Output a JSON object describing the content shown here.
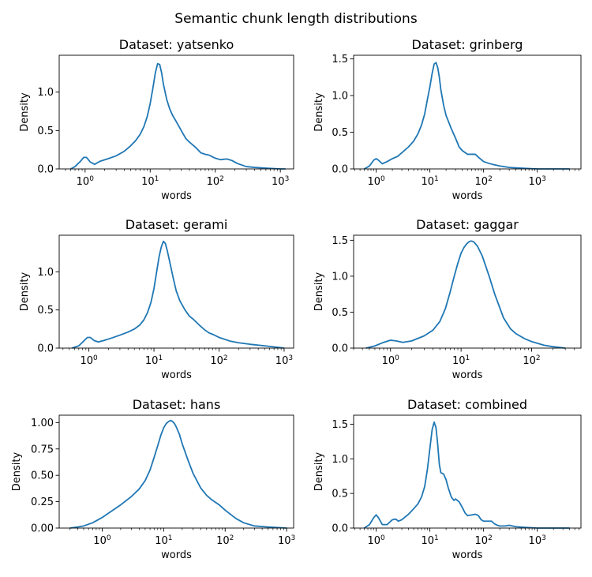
{
  "suptitle": "Semantic chunk length distributions",
  "colors": {
    "line": "#1f77b4",
    "axis": "#000000",
    "background": "#ffffff"
  },
  "chart_data": [
    {
      "type": "line",
      "title": "Dataset: yatsenko",
      "xlabel": "words",
      "ylabel": "Density",
      "xscale": "log",
      "xlim": [
        0.4,
        1600
      ],
      "ylim": [
        0,
        1.48
      ],
      "xticks": [
        {
          "value": 1,
          "label": "10^0"
        },
        {
          "value": 10,
          "label": "10^1"
        },
        {
          "value": 100,
          "label": "10^2"
        },
        {
          "value": 1000,
          "label": "10^3"
        }
      ],
      "yticks": [
        {
          "value": 0,
          "label": "0.0"
        },
        {
          "value": 0.5,
          "label": "0.5"
        },
        {
          "value": 1.0,
          "label": "1.0"
        }
      ],
      "series": [
        {
          "x": [
            0.6,
            0.7,
            0.85,
            0.95,
            1.05,
            1.2,
            1.4,
            1.7,
            2.2,
            3,
            4,
            5,
            6,
            7,
            8,
            9,
            10,
            11,
            12,
            13,
            14,
            15,
            16,
            18,
            20,
            22,
            25,
            30,
            35,
            40,
            50,
            60,
            70,
            80,
            100,
            120,
            150,
            180,
            220,
            300,
            400,
            600,
            1000,
            1200
          ],
          "y": [
            0.0,
            0.03,
            0.1,
            0.15,
            0.15,
            0.09,
            0.06,
            0.1,
            0.13,
            0.17,
            0.23,
            0.3,
            0.37,
            0.45,
            0.55,
            0.68,
            0.85,
            1.05,
            1.25,
            1.37,
            1.36,
            1.25,
            1.1,
            0.9,
            0.78,
            0.7,
            0.62,
            0.5,
            0.4,
            0.35,
            0.28,
            0.21,
            0.19,
            0.18,
            0.14,
            0.12,
            0.13,
            0.11,
            0.07,
            0.03,
            0.02,
            0.01,
            0.0,
            0.0
          ]
        }
      ]
    },
    {
      "type": "line",
      "title": "Dataset: grinberg",
      "xlabel": "words",
      "ylabel": "Density",
      "xscale": "log",
      "xlim": [
        0.38,
        6500
      ],
      "ylim": [
        0,
        1.55
      ],
      "xticks": [
        {
          "value": 1,
          "label": "10^0"
        },
        {
          "value": 10,
          "label": "10^1"
        },
        {
          "value": 100,
          "label": "10^2"
        },
        {
          "value": 1000,
          "label": "10^3"
        }
      ],
      "yticks": [
        {
          "value": 0,
          "label": "0.0"
        },
        {
          "value": 0.5,
          "label": "0.5"
        },
        {
          "value": 1.0,
          "label": "1.0"
        },
        {
          "value": 1.5,
          "label": "1.5"
        }
      ],
      "series": [
        {
          "x": [
            0.6,
            0.75,
            0.9,
            1.0,
            1.1,
            1.3,
            1.6,
            2.0,
            2.5,
            3,
            4,
            5,
            6,
            7,
            8,
            9,
            10,
            11,
            12,
            13,
            14,
            15,
            16,
            18,
            20,
            25,
            30,
            35,
            40,
            50,
            60,
            70,
            80,
            100,
            120,
            150,
            200,
            300,
            500,
            1000,
            2000,
            4000
          ],
          "y": [
            0.0,
            0.04,
            0.12,
            0.14,
            0.12,
            0.07,
            0.1,
            0.14,
            0.17,
            0.22,
            0.3,
            0.38,
            0.48,
            0.6,
            0.75,
            0.95,
            1.12,
            1.3,
            1.43,
            1.45,
            1.38,
            1.25,
            1.08,
            0.87,
            0.73,
            0.55,
            0.42,
            0.3,
            0.25,
            0.2,
            0.2,
            0.2,
            0.16,
            0.1,
            0.08,
            0.06,
            0.04,
            0.02,
            0.01,
            0.0,
            0.0,
            0.0
          ]
        }
      ]
    },
    {
      "type": "line",
      "title": "Dataset: gerami",
      "xlabel": "words",
      "ylabel": "Density",
      "xscale": "log",
      "xlim": [
        0.35,
        1400
      ],
      "ylim": [
        0,
        1.48
      ],
      "xticks": [
        {
          "value": 1,
          "label": "10^0"
        },
        {
          "value": 10,
          "label": "10^1"
        },
        {
          "value": 100,
          "label": "10^2"
        },
        {
          "value": 1000,
          "label": "10^3"
        }
      ],
      "yticks": [
        {
          "value": 0,
          "label": "0.0"
        },
        {
          "value": 0.5,
          "label": "0.5"
        },
        {
          "value": 1.0,
          "label": "1.0"
        }
      ],
      "series": [
        {
          "x": [
            0.55,
            0.7,
            0.85,
            0.95,
            1.05,
            1.2,
            1.4,
            1.7,
            2.2,
            3,
            4,
            5,
            6,
            7,
            8,
            9,
            10,
            11,
            12,
            13,
            14,
            15,
            16,
            18,
            20,
            22,
            25,
            30,
            35,
            40,
            50,
            60,
            70,
            80,
            100,
            150,
            200,
            300,
            500,
            800,
            1000
          ],
          "y": [
            0.0,
            0.03,
            0.1,
            0.14,
            0.14,
            0.1,
            0.08,
            0.1,
            0.13,
            0.17,
            0.21,
            0.25,
            0.3,
            0.37,
            0.47,
            0.6,
            0.78,
            1.0,
            1.2,
            1.33,
            1.4,
            1.37,
            1.28,
            1.08,
            0.9,
            0.75,
            0.62,
            0.5,
            0.42,
            0.38,
            0.3,
            0.24,
            0.2,
            0.18,
            0.14,
            0.09,
            0.07,
            0.05,
            0.03,
            0.01,
            0.0
          ]
        }
      ]
    },
    {
      "type": "line",
      "title": "Dataset: gaggar",
      "xlabel": "words",
      "ylabel": "Density",
      "xscale": "log",
      "xlim": [
        0.3,
        500
      ],
      "ylim": [
        0,
        1.57
      ],
      "xticks": [
        {
          "value": 1,
          "label": "10^0"
        },
        {
          "value": 10,
          "label": "10^1"
        },
        {
          "value": 100,
          "label": "10^2"
        }
      ],
      "yticks": [
        {
          "value": 0,
          "label": "0.0"
        },
        {
          "value": 0.5,
          "label": "0.5"
        },
        {
          "value": 1.0,
          "label": "1.0"
        },
        {
          "value": 1.5,
          "label": "1.5"
        }
      ],
      "series": [
        {
          "x": [
            0.45,
            0.6,
            0.8,
            1.0,
            1.2,
            1.5,
            2,
            3,
            4,
            5,
            6,
            7,
            8,
            9,
            10,
            11,
            12,
            13,
            14,
            15,
            17,
            20,
            25,
            30,
            40,
            50,
            60,
            80,
            100,
            150,
            200,
            300
          ],
          "y": [
            0.0,
            0.03,
            0.08,
            0.11,
            0.1,
            0.08,
            0.1,
            0.17,
            0.25,
            0.37,
            0.55,
            0.78,
            1.0,
            1.18,
            1.32,
            1.4,
            1.45,
            1.48,
            1.49,
            1.48,
            1.42,
            1.28,
            1.0,
            0.75,
            0.42,
            0.27,
            0.2,
            0.13,
            0.09,
            0.04,
            0.02,
            0.0
          ]
        }
      ]
    },
    {
      "type": "line",
      "title": "Dataset: hans",
      "xlabel": "words",
      "ylabel": "Density",
      "xscale": "log",
      "xlim": [
        0.2,
        1300
      ],
      "ylim": [
        0,
        1.07
      ],
      "xticks": [
        {
          "value": 1,
          "label": "10^0"
        },
        {
          "value": 10,
          "label": "10^1"
        },
        {
          "value": 100,
          "label": "10^2"
        },
        {
          "value": 1000,
          "label": "10^3"
        }
      ],
      "yticks": [
        {
          "value": 0,
          "label": "0.00"
        },
        {
          "value": 0.25,
          "label": "0.25"
        },
        {
          "value": 0.5,
          "label": "0.50"
        },
        {
          "value": 0.75,
          "label": "0.75"
        },
        {
          "value": 1.0,
          "label": "1.00"
        }
      ],
      "series": [
        {
          "x": [
            0.3,
            0.4,
            0.5,
            0.7,
            1.0,
            1.5,
            2,
            3,
            4,
            5,
            6,
            7,
            8,
            9,
            10,
            11,
            12,
            13,
            14,
            15,
            16,
            18,
            20,
            25,
            30,
            40,
            50,
            60,
            80,
            100,
            150,
            200,
            300,
            500,
            1000
          ],
          "y": [
            0.0,
            0.01,
            0.02,
            0.05,
            0.1,
            0.17,
            0.22,
            0.3,
            0.37,
            0.45,
            0.55,
            0.67,
            0.78,
            0.88,
            0.95,
            0.99,
            1.01,
            1.02,
            1.01,
            0.99,
            0.96,
            0.89,
            0.8,
            0.64,
            0.52,
            0.38,
            0.31,
            0.27,
            0.22,
            0.17,
            0.09,
            0.05,
            0.02,
            0.01,
            0.0
          ]
        }
      ]
    },
    {
      "type": "line",
      "title": "Dataset: combined",
      "xlabel": "words",
      "ylabel": "Density",
      "xscale": "log",
      "xlim": [
        0.38,
        6500
      ],
      "ylim": [
        0,
        1.63
      ],
      "xticks": [
        {
          "value": 1,
          "label": "10^0"
        },
        {
          "value": 10,
          "label": "10^1"
        },
        {
          "value": 100,
          "label": "10^2"
        },
        {
          "value": 1000,
          "label": "10^3"
        }
      ],
      "yticks": [
        {
          "value": 0,
          "label": "0.0"
        },
        {
          "value": 0.5,
          "label": "0.5"
        },
        {
          "value": 1.0,
          "label": "1.0"
        },
        {
          "value": 1.5,
          "label": "1.5"
        }
      ],
      "series": [
        {
          "x": [
            0.6,
            0.75,
            0.9,
            1.0,
            1.1,
            1.3,
            1.6,
            2.0,
            2.3,
            2.6,
            3,
            4,
            5,
            6,
            7,
            8,
            9,
            10,
            11,
            12,
            13,
            14,
            15,
            16,
            18,
            20,
            22,
            25,
            28,
            30,
            35,
            40,
            45,
            50,
            60,
            70,
            80,
            90,
            100,
            120,
            140,
            160,
            180,
            200,
            250,
            300,
            400,
            600,
            1000,
            2000,
            4000
          ],
          "y": [
            0.0,
            0.05,
            0.15,
            0.19,
            0.15,
            0.05,
            0.05,
            0.12,
            0.13,
            0.1,
            0.12,
            0.2,
            0.28,
            0.35,
            0.45,
            0.6,
            0.85,
            1.15,
            1.42,
            1.53,
            1.45,
            1.2,
            0.92,
            0.8,
            0.78,
            0.7,
            0.58,
            0.45,
            0.4,
            0.42,
            0.38,
            0.3,
            0.22,
            0.18,
            0.19,
            0.2,
            0.18,
            0.12,
            0.1,
            0.1,
            0.1,
            0.06,
            0.04,
            0.03,
            0.03,
            0.04,
            0.02,
            0.01,
            0.0,
            0.0,
            0.0
          ]
        }
      ]
    }
  ]
}
